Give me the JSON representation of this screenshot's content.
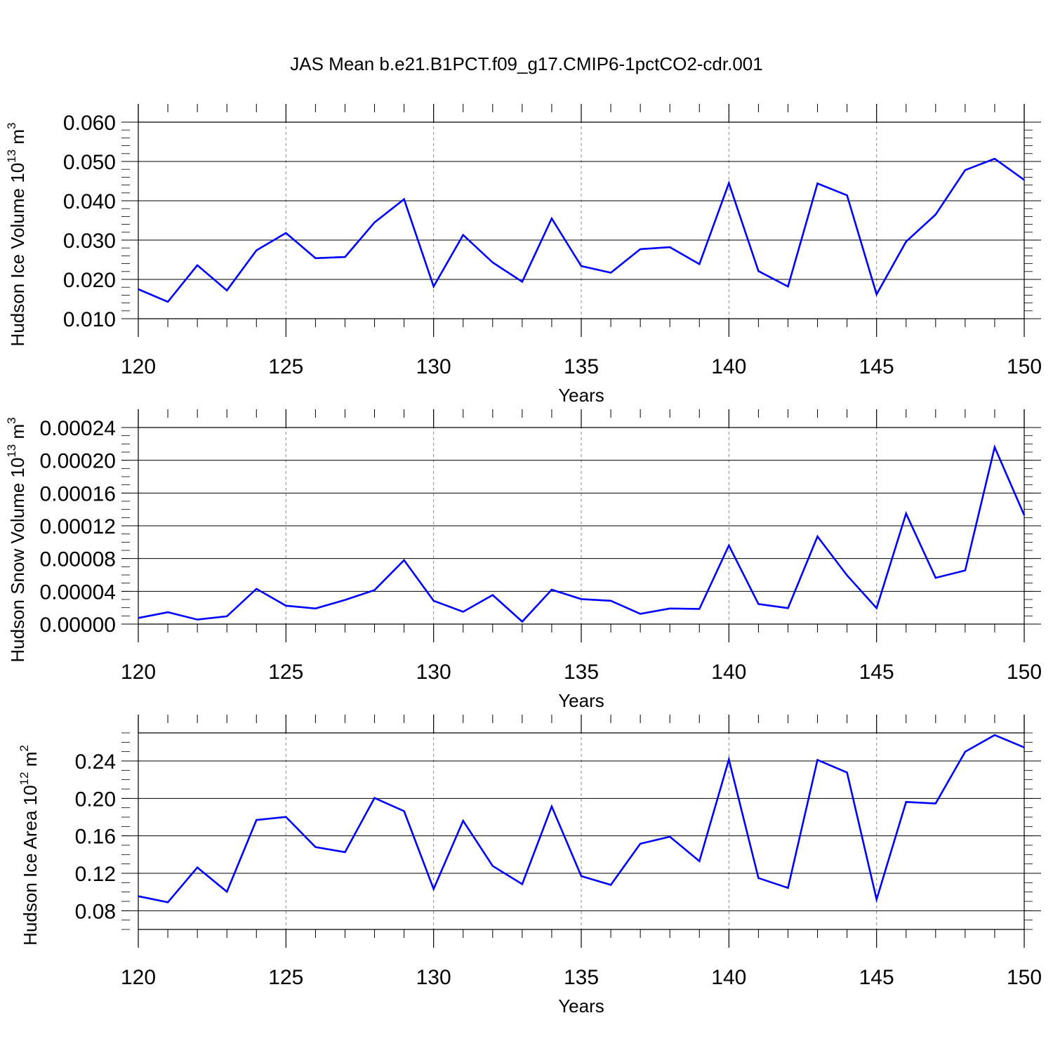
{
  "title": "JAS Mean b.e21.B1PCT.f09_g17.CMIP6-1pctCO2-cdr.001",
  "chart_data": [
    {
      "type": "line",
      "xlabel": "Years",
      "ylabel": {
        "text": "Hudson Ice Volume 10",
        "sup": "13",
        "unit": " m",
        "unit_sup": "3"
      },
      "xlim": [
        120,
        150
      ],
      "ylim": [
        0.01,
        0.06
      ],
      "xticks": [
        "120",
        "125",
        "130",
        "135",
        "140",
        "145",
        "150"
      ],
      "yticks": [
        {
          "v": 0.01,
          "label": "0.010"
        },
        {
          "v": 0.02,
          "label": "0.020"
        },
        {
          "v": 0.03,
          "label": "0.030"
        },
        {
          "v": 0.04,
          "label": "0.040"
        },
        {
          "v": 0.05,
          "label": "0.050"
        },
        {
          "v": 0.06,
          "label": "0.060"
        }
      ],
      "grid": "dashed vertical at major x ticks",
      "series": [
        {
          "color": "#0000ff",
          "x": [
            120,
            121,
            122,
            123,
            124,
            125,
            126,
            127,
            128,
            129,
            130,
            131,
            132,
            133,
            134,
            135,
            136,
            137,
            138,
            139,
            140,
            141,
            142,
            143,
            144,
            145,
            146,
            147,
            148,
            149,
            150
          ],
          "values": [
            0.0175,
            0.0143,
            0.0236,
            0.0172,
            0.0274,
            0.0318,
            0.0254,
            0.0257,
            0.0345,
            0.0404,
            0.0182,
            0.0313,
            0.0243,
            0.0194,
            0.0355,
            0.0234,
            0.0217,
            0.0277,
            0.0282,
            0.0239,
            0.0445,
            0.0221,
            0.0182,
            0.0444,
            0.0414,
            0.0162,
            0.0296,
            0.0365,
            0.0478,
            0.0507,
            0.0453
          ]
        }
      ]
    },
    {
      "type": "line",
      "xlabel": "Years",
      "ylabel": {
        "text": "Hudson Snow Volume 10",
        "sup": "13",
        "unit": " m",
        "unit_sup": "3"
      },
      "xlim": [
        120,
        150
      ],
      "ylim": [
        0.0,
        0.00024
      ],
      "xticks": [
        "120",
        "125",
        "130",
        "135",
        "140",
        "145",
        "150"
      ],
      "yticks": [
        {
          "v": 0.0,
          "label": "0.00000"
        },
        {
          "v": 4e-05,
          "label": "0.00004"
        },
        {
          "v": 8e-05,
          "label": "0.00008"
        },
        {
          "v": 0.00012,
          "label": "0.00012"
        },
        {
          "v": 0.00016,
          "label": "0.00016"
        },
        {
          "v": 0.0002,
          "label": "0.00020"
        },
        {
          "v": 0.00024,
          "label": "0.00024"
        }
      ],
      "grid": "dashed vertical at major x ticks",
      "series": [
        {
          "color": "#0000ff",
          "x": [
            120,
            121,
            122,
            123,
            124,
            125,
            126,
            127,
            128,
            129,
            130,
            131,
            132,
            133,
            134,
            135,
            136,
            137,
            138,
            139,
            140,
            141,
            142,
            143,
            144,
            145,
            146,
            147,
            148,
            149,
            150
          ],
          "values": [
            7.5e-06,
            1.45e-05,
            5.5e-06,
            9.5e-06,
            4.3e-05,
            2.25e-05,
            1.9e-05,
            2.95e-05,
            4.15e-05,
            7.8e-05,
            2.85e-05,
            1.5e-05,
            3.55e-05,
            3e-06,
            4.2e-05,
            3.05e-05,
            2.85e-05,
            1.25e-05,
            1.9e-05,
            1.85e-05,
            9.6e-05,
            2.45e-05,
            1.95e-05,
            0.000107,
            5.95e-05,
            1.95e-05,
            0.000135,
            5.65e-05,
            6.55e-05,
            0.000216,
            0.000133
          ]
        }
      ]
    },
    {
      "type": "line",
      "xlabel": "Years",
      "ylabel": {
        "text": "Hudson Ice Area 10",
        "sup": "12",
        "unit": " m",
        "unit_sup": "2"
      },
      "xlim": [
        120,
        150
      ],
      "ylim": [
        0.06,
        0.27
      ],
      "xticks": [
        "120",
        "125",
        "130",
        "135",
        "140",
        "145",
        "150"
      ],
      "yticks": [
        {
          "v": 0.08,
          "label": "0.08"
        },
        {
          "v": 0.12,
          "label": "0.12"
        },
        {
          "v": 0.16,
          "label": "0.16"
        },
        {
          "v": 0.2,
          "label": "0.20"
        },
        {
          "v": 0.24,
          "label": "0.24"
        }
      ],
      "grid": "dashed vertical at major x ticks",
      "series": [
        {
          "color": "#0000ff",
          "x": [
            120,
            121,
            122,
            123,
            124,
            125,
            126,
            127,
            128,
            129,
            130,
            131,
            132,
            133,
            134,
            135,
            136,
            137,
            138,
            139,
            140,
            141,
            142,
            143,
            144,
            145,
            146,
            147,
            148,
            149,
            150
          ],
          "values": [
            0.0955,
            0.089,
            0.1262,
            0.1003,
            0.1769,
            0.1802,
            0.148,
            0.1426,
            0.2005,
            0.1864,
            0.1032,
            0.1761,
            0.1278,
            0.1084,
            0.1914,
            0.117,
            0.1076,
            0.1516,
            0.1591,
            0.133,
            0.2416,
            0.1149,
            0.1044,
            0.2411,
            0.2277,
            0.092,
            0.1962,
            0.1946,
            0.2499,
            0.2677,
            0.2545
          ]
        }
      ]
    }
  ]
}
